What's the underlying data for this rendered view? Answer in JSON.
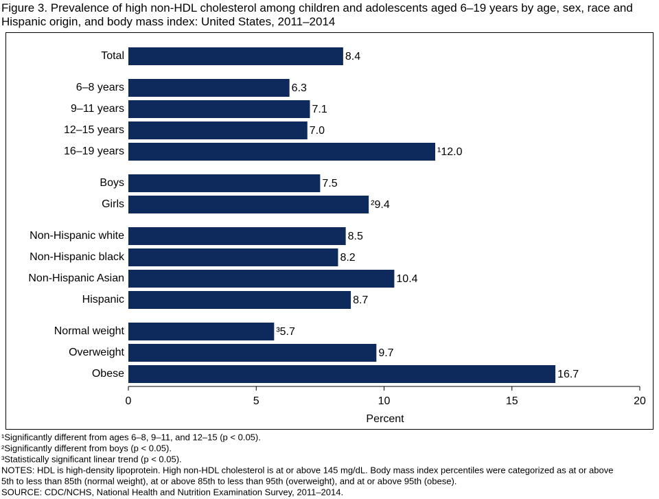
{
  "chart_data": {
    "type": "bar",
    "orientation": "horizontal",
    "title": "Figure 3. Prevalence of high non-HDL cholesterol among children and adolescents aged 6–19 years by age, sex, race and Hispanic origin, and body mass index: United States, 2011–2014",
    "color": "#0e2a5c",
    "groups": [
      {
        "categories": [
          "Total"
        ],
        "values": [
          8.4
        ],
        "value_labels": [
          "8.4"
        ]
      },
      {
        "categories": [
          "6–8 years",
          "9–11 years",
          "12–15 years",
          "16–19 years"
        ],
        "values": [
          6.3,
          7.1,
          7.0,
          12.0
        ],
        "value_labels": [
          "6.3",
          "7.1",
          "7.0",
          "¹12.0"
        ]
      },
      {
        "categories": [
          "Boys",
          "Girls"
        ],
        "values": [
          7.5,
          9.4
        ],
        "value_labels": [
          "7.5",
          "²9.4"
        ]
      },
      {
        "categories": [
          "Non-Hispanic white",
          "Non-Hispanic black",
          "Non-Hispanic Asian",
          "Hispanic"
        ],
        "values": [
          8.5,
          8.2,
          10.4,
          8.7
        ],
        "value_labels": [
          "8.5",
          "8.2",
          "10.4",
          "8.7"
        ]
      },
      {
        "categories": [
          "Normal weight",
          "Overweight",
          "Obese"
        ],
        "values": [
          5.7,
          9.7,
          16.7
        ],
        "value_labels": [
          "³5.7",
          "9.7",
          "16.7"
        ]
      }
    ],
    "xlabel": "Percent",
    "xlim": [
      0,
      20
    ],
    "xticks": [
      0,
      5,
      10,
      15,
      20
    ],
    "footnotes": [
      "¹Significantly different from ages 6–8, 9–11, and 12–15 (p < 0.05).",
      "²Significantly different from boys (p < 0.05).",
      "³Statistically significant linear trend (p < 0.05).",
      "NOTES: HDL is high-density lipoprotein. High non-HDL cholesterol is at or above 145 mg/dL. Body mass index percentiles were categorized as at or above",
      "5th to less than 85th (normal weight), at or above 85th to less than 95th (overweight), and at or above 95th (obese).",
      "SOURCE: CDC/NCHS, National Health and Nutrition Examination Survey, 2011–2014."
    ]
  }
}
